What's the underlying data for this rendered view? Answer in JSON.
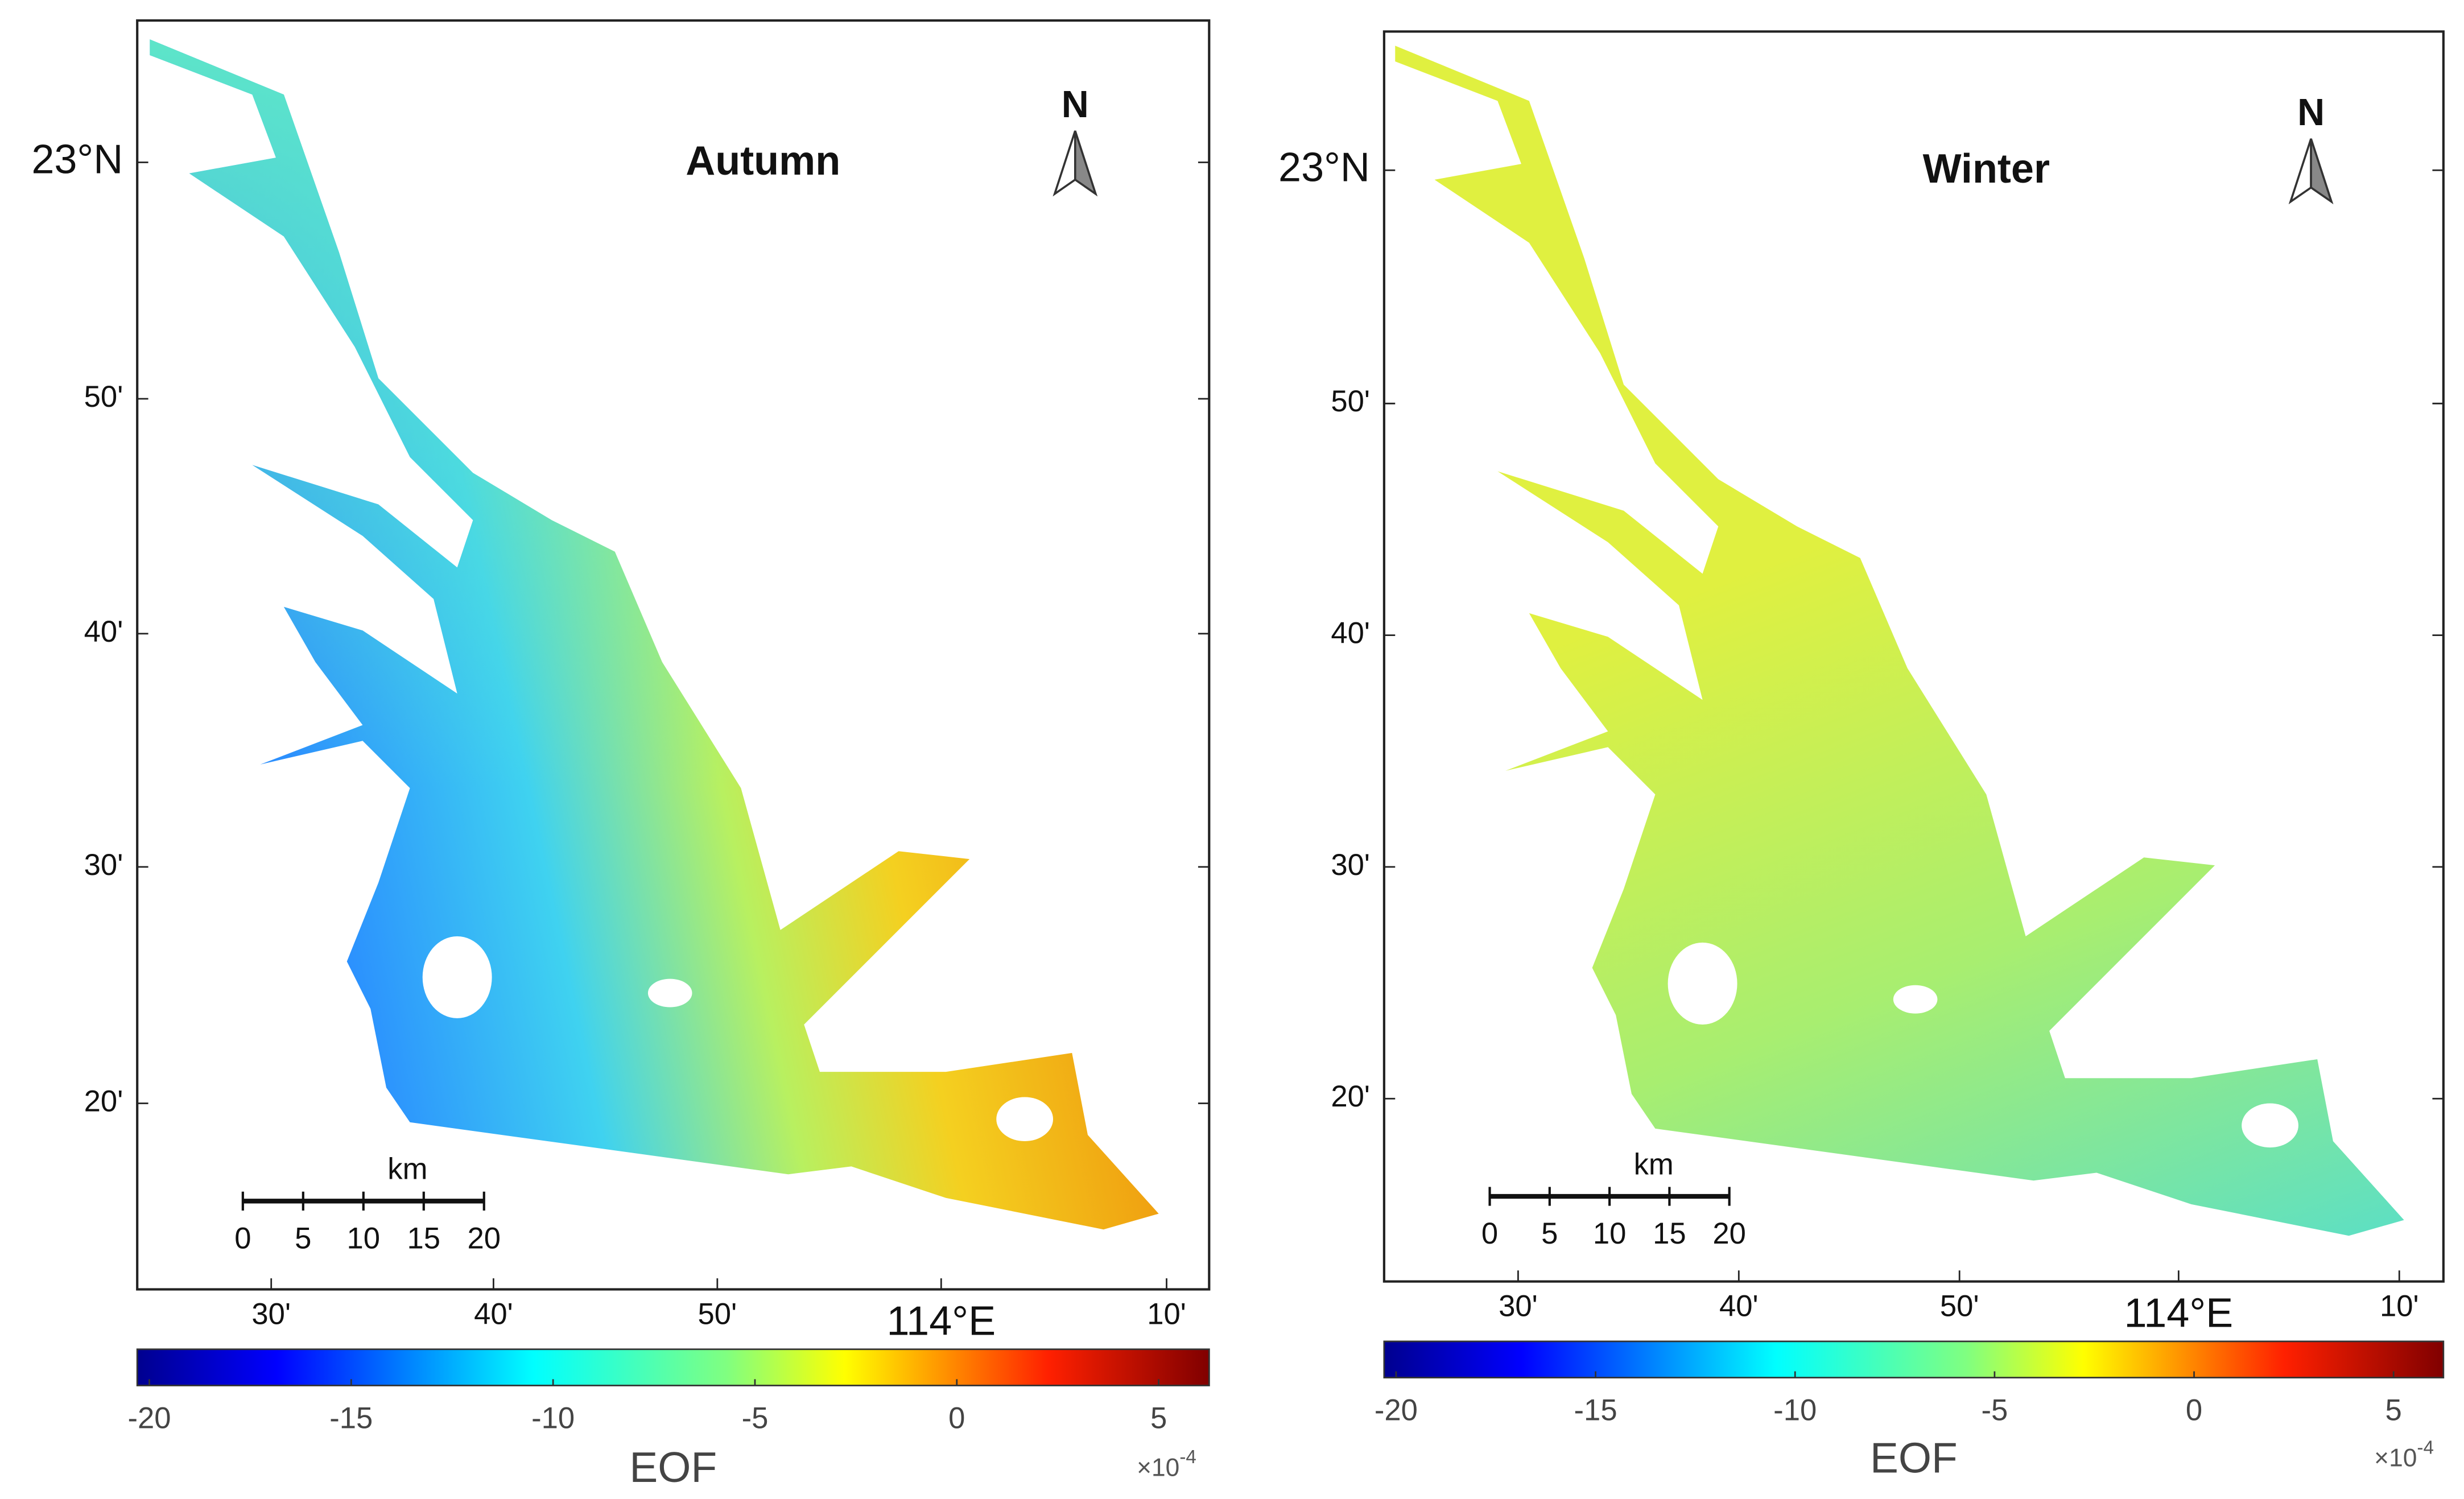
{
  "panels": [
    {
      "title": "Autumn",
      "north": "N",
      "lat_labels": [
        "23°N",
        "50'",
        "40'",
        "30'",
        "20'"
      ],
      "lon_labels": [
        "30'",
        "40'",
        "50'",
        "114°E",
        "10'"
      ],
      "scale_bar": {
        "unit": "km",
        "ticks": [
          0,
          5,
          10,
          15,
          20
        ]
      },
      "colorbar": {
        "label": "EOF",
        "multiplier": "×10",
        "exponent": "-4",
        "clim": [
          -20.3,
          6.25
        ],
        "ticks": [
          -20,
          -15,
          -10,
          -5,
          0,
          5
        ]
      }
    },
    {
      "title": "Winter",
      "north": "N",
      "lat_labels": [
        "23°N",
        "50'",
        "40'",
        "30'",
        "20'"
      ],
      "lon_labels": [
        "30'",
        "40'",
        "50'",
        "114°E",
        "10'"
      ],
      "scale_bar": {
        "unit": "km",
        "ticks": [
          0,
          5,
          10,
          15,
          20
        ]
      },
      "colorbar": {
        "label": "EOF",
        "multiplier": "×10",
        "exponent": "-4",
        "clim": [
          -20.3,
          6.25
        ],
        "ticks": [
          -20,
          -15,
          -10,
          -5,
          0,
          5
        ]
      }
    }
  ]
}
